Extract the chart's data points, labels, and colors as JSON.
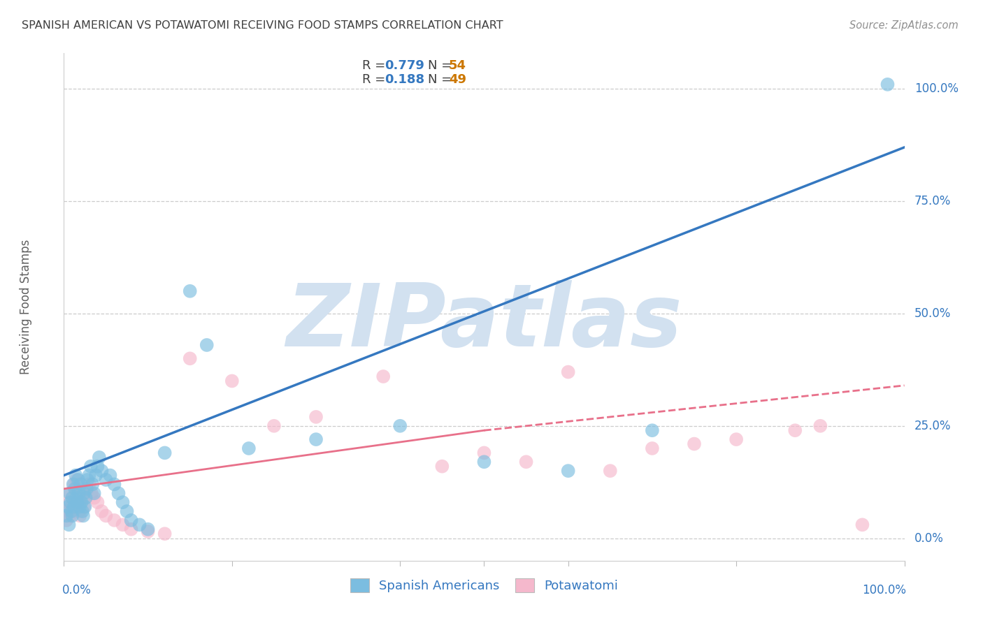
{
  "title": "SPANISH AMERICAN VS POTAWATOMI RECEIVING FOOD STAMPS CORRELATION CHART",
  "source": "Source: ZipAtlas.com",
  "ylabel": "Receiving Food Stamps",
  "ytick_labels": [
    "0.0%",
    "25.0%",
    "50.0%",
    "75.0%",
    "100.0%"
  ],
  "ytick_values": [
    0,
    25,
    50,
    75,
    100
  ],
  "xtick_labels_bottom": [
    "0.0%",
    "100.0%"
  ],
  "xlim": [
    0,
    100
  ],
  "ylim": [
    -5,
    108
  ],
  "watermark": "ZIPatlas",
  "blue_color": "#7bbde0",
  "pink_color": "#f5b8cc",
  "blue_line_color": "#3578c0",
  "pink_line_color": "#e8708a",
  "title_color": "#404040",
  "source_color": "#909090",
  "axis_label_color": "#3578c0",
  "watermark_r": 210,
  "watermark_g": 225,
  "watermark_b": 240,
  "blue_scatter_x": [
    0.3,
    0.5,
    0.6,
    0.7,
    0.8,
    0.9,
    1.0,
    1.0,
    1.1,
    1.2,
    1.3,
    1.4,
    1.5,
    1.6,
    1.7,
    1.8,
    1.9,
    2.0,
    2.1,
    2.2,
    2.3,
    2.4,
    2.5,
    2.6,
    2.7,
    2.8,
    3.0,
    3.2,
    3.4,
    3.6,
    3.8,
    4.0,
    4.2,
    4.5,
    5.0,
    5.5,
    6.0,
    6.5,
    7.0,
    7.5,
    8.0,
    9.0,
    10.0,
    12.0,
    15.0,
    17.0,
    22.0,
    30.0,
    40.0,
    50.0,
    60.0,
    70.0,
    98.0
  ],
  "blue_scatter_y": [
    5.0,
    7.0,
    3.0,
    10.0,
    8.0,
    6.0,
    9.0,
    5.0,
    12.0,
    7.0,
    11.0,
    14.0,
    9.0,
    8.0,
    13.0,
    10.0,
    7.0,
    12.0,
    8.0,
    6.0,
    5.0,
    10.0,
    7.0,
    9.0,
    11.0,
    13.0,
    14.0,
    16.0,
    12.0,
    10.0,
    14.0,
    16.0,
    18.0,
    15.0,
    13.0,
    14.0,
    12.0,
    10.0,
    8.0,
    6.0,
    4.0,
    3.0,
    2.0,
    19.0,
    55.0,
    43.0,
    20.0,
    22.0,
    25.0,
    17.0,
    15.0,
    24.0,
    101.0
  ],
  "pink_scatter_x": [
    0.3,
    0.5,
    0.6,
    0.7,
    0.8,
    0.9,
    1.0,
    1.1,
    1.2,
    1.3,
    1.4,
    1.5,
    1.6,
    1.7,
    1.8,
    1.9,
    2.0,
    2.2,
    2.4,
    2.6,
    2.8,
    3.0,
    3.3,
    3.6,
    4.0,
    4.5,
    5.0,
    6.0,
    7.0,
    8.0,
    10.0,
    12.0,
    15.0,
    20.0,
    25.0,
    30.0,
    38.0,
    45.0,
    50.0,
    55.0,
    60.0,
    65.0,
    70.0,
    75.0,
    80.0,
    87.0,
    90.0,
    95.0
  ],
  "pink_scatter_y": [
    4.0,
    6.0,
    8.0,
    5.0,
    10.0,
    7.0,
    9.0,
    6.0,
    12.0,
    8.0,
    11.0,
    13.0,
    7.0,
    9.0,
    6.0,
    5.0,
    8.0,
    10.0,
    7.0,
    9.0,
    11.0,
    12.0,
    10.0,
    9.0,
    8.0,
    6.0,
    5.0,
    4.0,
    3.0,
    2.0,
    1.5,
    1.0,
    40.0,
    35.0,
    25.0,
    27.0,
    36.0,
    16.0,
    19.0,
    17.0,
    37.0,
    15.0,
    20.0,
    21.0,
    22.0,
    24.0,
    25.0,
    3.0
  ],
  "blue_trend_x0": 0,
  "blue_trend_y0": 14,
  "blue_trend_x1": 100,
  "blue_trend_y1": 87,
  "pink_solid_x0": 0,
  "pink_solid_y0": 11,
  "pink_solid_x1": 50,
  "pink_solid_y1": 24,
  "pink_dash_x0": 50,
  "pink_dash_y0": 24,
  "pink_dash_x1": 100,
  "pink_dash_y1": 34
}
